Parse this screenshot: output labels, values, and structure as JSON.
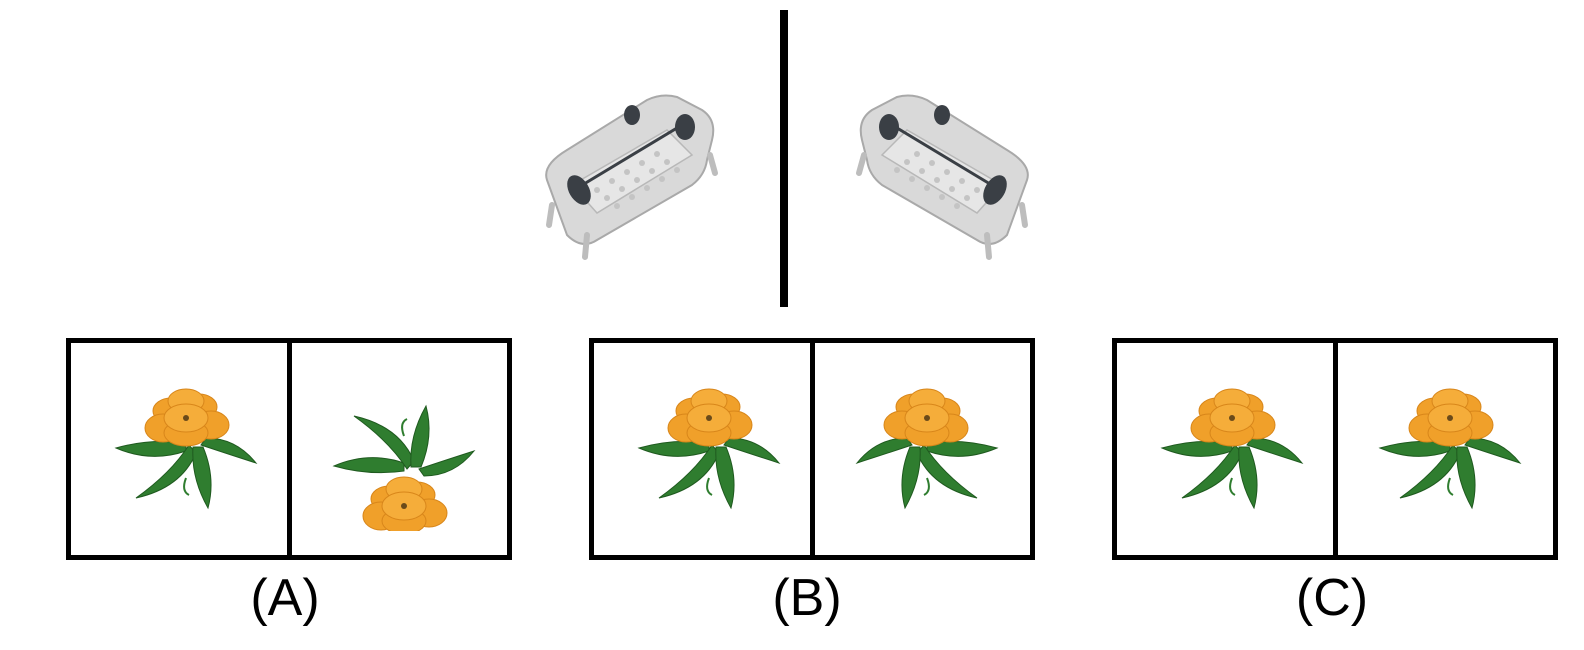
{
  "options": [
    {
      "label": "(A)"
    },
    {
      "label": "(B)"
    },
    {
      "label": "(C)"
    }
  ],
  "colors": {
    "petal": "#f0a02a",
    "petal_dark": "#d8861a",
    "leaf": "#2f7d2f",
    "leaf_dark": "#1f5a1f",
    "sofa_body": "#d9d9d9",
    "sofa_shadow": "#a9a9a9",
    "sofa_dark": "#3a3f45",
    "frame": "#000000"
  },
  "icons": {
    "sofa": "silver-sofa-icon",
    "flower": "orange-flower-icon"
  }
}
